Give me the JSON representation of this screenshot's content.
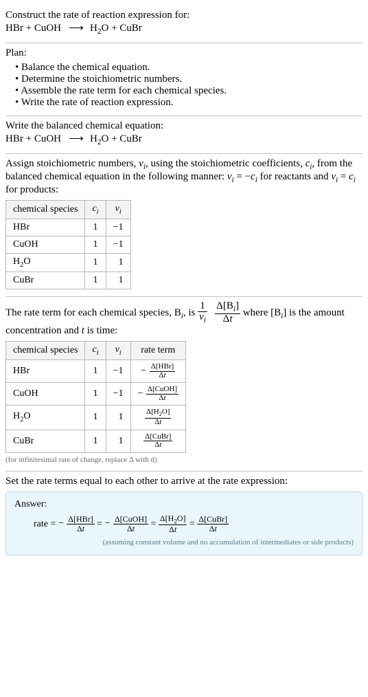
{
  "intro": {
    "prompt": "Construct the rate of reaction expression for:",
    "equation_lhs_a": "HBr",
    "equation_lhs_b": "CuOH",
    "equation_rhs_a": "H",
    "equation_rhs_a_sub": "2",
    "equation_rhs_a_tail": "O",
    "equation_rhs_b": "CuBr",
    "arrow": "⟶"
  },
  "plan": {
    "title": "Plan:",
    "items": [
      "Balance the chemical equation.",
      "Determine the stoichiometric numbers.",
      "Assemble the rate term for each chemical species.",
      "Write the rate of reaction expression."
    ]
  },
  "balanced": {
    "title": "Write the balanced chemical equation:",
    "lhs_a": "HBr",
    "lhs_b": "CuOH",
    "arrow": "⟶",
    "rhs_a": "H",
    "rhs_a_sub": "2",
    "rhs_a_tail": "O",
    "rhs_b": "CuBr"
  },
  "assign": {
    "text_a": "Assign stoichiometric numbers, ",
    "vi": "ν",
    "vi_sub": "i",
    "text_b": ", using the stoichiometric coefficients, ",
    "ci": "c",
    "ci_sub": "i",
    "text_c": ", from the balanced chemical equation in the following manner: ",
    "rule_reactants_l": "ν",
    "rule_reactants_l_sub": "i",
    "rule_eq": " = −",
    "rule_reactants_r": "c",
    "rule_reactants_r_sub": "i",
    "text_d": " for reactants and ",
    "rule_products_l": "ν",
    "rule_products_l_sub": "i",
    "rule_eq2": " = ",
    "rule_products_r": "c",
    "rule_products_r_sub": "i",
    "text_e": " for products:"
  },
  "table1": {
    "headers": {
      "h1": "chemical species",
      "h2": "c",
      "h2_sub": "i",
      "h3": "ν",
      "h3_sub": "i"
    },
    "rows": [
      {
        "sp": "HBr",
        "c": "1",
        "v": "−1"
      },
      {
        "sp": "CuOH",
        "c": "1",
        "v": "−1"
      },
      {
        "sp_a": "H",
        "sp_sub": "2",
        "sp_b": "O",
        "c": "1",
        "v": "1"
      },
      {
        "sp": "CuBr",
        "c": "1",
        "v": "1"
      }
    ]
  },
  "rate_term": {
    "text_a": "The rate term for each chemical species, B",
    "bi_sub": "i",
    "text_b": ", is ",
    "f1_num": "1",
    "f1_den_a": "ν",
    "f1_den_sub": "i",
    "f2_num": "Δ[B",
    "f2_num_sub": "i",
    "f2_num_tail": "]",
    "f2_den": "Δt",
    "text_c": " where [B",
    "text_c_sub": "i",
    "text_d": "] is the amount concentration and ",
    "t": "t",
    "text_e": " is time:"
  },
  "table2": {
    "headers": {
      "h1": "chemical species",
      "h2": "c",
      "h2_sub": "i",
      "h3": "ν",
      "h3_sub": "i",
      "h4": "rate term"
    },
    "rows": [
      {
        "sp": "HBr",
        "c": "1",
        "v": "−1",
        "neg": "−",
        "num": "Δ[HBr]",
        "den": "Δt"
      },
      {
        "sp": "CuOH",
        "c": "1",
        "v": "−1",
        "neg": "−",
        "num": "Δ[CuOH]",
        "den": "Δt"
      },
      {
        "sp_a": "H",
        "sp_sub": "2",
        "sp_b": "O",
        "c": "1",
        "v": "1",
        "neg": "",
        "num_a": "Δ[H",
        "num_sub": "2",
        "num_b": "O]",
        "den": "Δt"
      },
      {
        "sp": "CuBr",
        "c": "1",
        "v": "1",
        "neg": "",
        "num": "Δ[CuBr]",
        "den": "Δt"
      }
    ],
    "note": "(for infinitesimal rate of change, replace Δ with d)"
  },
  "conclude": {
    "text": "Set the rate terms equal to each other to arrive at the rate expression:"
  },
  "answer": {
    "label": "Answer:",
    "rate_label": "rate = ",
    "neg": "−",
    "t1_num": "Δ[HBr]",
    "t1_den": "Δt",
    "eq": " = ",
    "t2_num": "Δ[CuOH]",
    "t2_den": "Δt",
    "t3_num_a": "Δ[H",
    "t3_num_sub": "2",
    "t3_num_b": "O]",
    "t3_den": "Δt",
    "t4_num": "Δ[CuBr]",
    "t4_den": "Δt",
    "note": "(assuming constant volume and no accumulation of intermediates or side products)"
  },
  "style": {
    "border_color": "#c5c5c5",
    "table_border": "#b7b7b7",
    "table_header_bg": "#f3f3f3",
    "answer_bg": "#e9f6fb",
    "answer_border": "#bcdbe6",
    "note_color": "#6a6a6a"
  }
}
